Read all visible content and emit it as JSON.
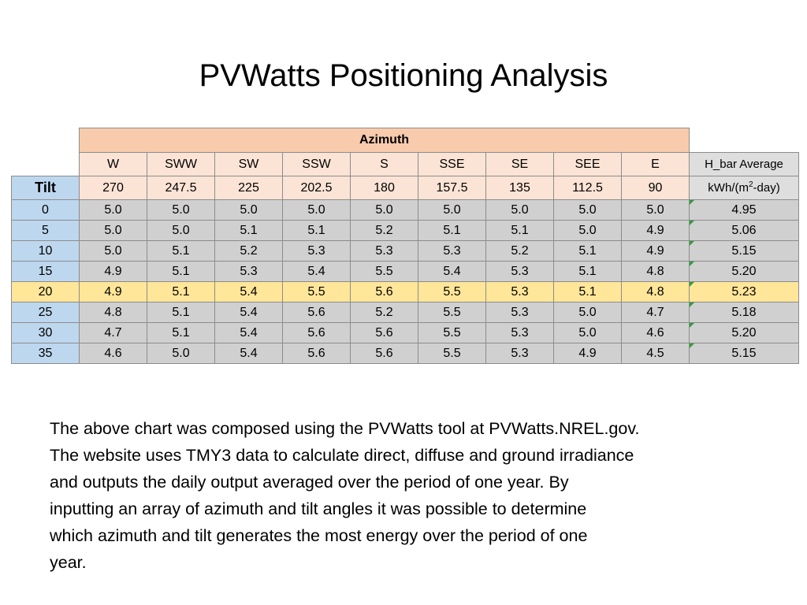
{
  "title": "PVWatts Positioning Analysis",
  "table": {
    "azimuth_header": "Azimuth",
    "tilt_header": "Tilt",
    "hbar_header_line1": "H_bar Average",
    "hbar_unit_pre": "kWh/(m",
    "hbar_unit_sup": "2",
    "hbar_unit_post": "-day)",
    "directions": [
      "W",
      "SWW",
      "SW",
      "SSW",
      "S",
      "SSE",
      "SE",
      "SEE",
      "E"
    ],
    "degrees": [
      "270",
      "247.5",
      "225",
      "202.5",
      "180",
      "157.5",
      "135",
      "112.5",
      "90"
    ],
    "highlight_color": "#ffe699",
    "rows": [
      {
        "tilt": "0",
        "values": [
          "5.0",
          "5.0",
          "5.0",
          "5.0",
          "5.0",
          "5.0",
          "5.0",
          "5.0",
          "5.0"
        ],
        "avg": "4.95",
        "highlight": false
      },
      {
        "tilt": "5",
        "values": [
          "5.0",
          "5.0",
          "5.1",
          "5.1",
          "5.2",
          "5.1",
          "5.1",
          "5.0",
          "4.9"
        ],
        "avg": "5.06",
        "highlight": false
      },
      {
        "tilt": "10",
        "values": [
          "5.0",
          "5.1",
          "5.2",
          "5.3",
          "5.3",
          "5.3",
          "5.2",
          "5.1",
          "4.9"
        ],
        "avg": "5.15",
        "highlight": false
      },
      {
        "tilt": "15",
        "values": [
          "4.9",
          "5.1",
          "5.3",
          "5.4",
          "5.5",
          "5.4",
          "5.3",
          "5.1",
          "4.8"
        ],
        "avg": "5.20",
        "highlight": false
      },
      {
        "tilt": "20",
        "values": [
          "4.9",
          "5.1",
          "5.4",
          "5.5",
          "5.6",
          "5.5",
          "5.3",
          "5.1",
          "4.8"
        ],
        "avg": "5.23",
        "highlight": true
      },
      {
        "tilt": "25",
        "values": [
          "4.8",
          "5.1",
          "5.4",
          "5.6",
          "5.2",
          "5.5",
          "5.3",
          "5.0",
          "4.7"
        ],
        "avg": "5.18",
        "highlight": false
      },
      {
        "tilt": "30",
        "values": [
          "4.7",
          "5.1",
          "5.4",
          "5.6",
          "5.6",
          "5.5",
          "5.3",
          "5.0",
          "4.6"
        ],
        "avg": "5.20",
        "highlight": false
      },
      {
        "tilt": "35",
        "values": [
          "4.6",
          "5.0",
          "5.4",
          "5.6",
          "5.6",
          "5.5",
          "5.3",
          "4.9",
          "4.5"
        ],
        "avg": "5.15",
        "highlight": false
      }
    ]
  },
  "caption": {
    "lines": [
      "The above chart was composed using the PVWatts tool at PVWatts.NREL.gov.",
      "The website uses TMY3 data to calculate direct, diffuse and ground irradiance",
      "and outputs the daily output averaged over the period of one year. By",
      "inputting an array of azimuth and tilt angles it was possible to determine",
      "which azimuth and tilt generates the most energy over the period of one",
      "year."
    ]
  }
}
